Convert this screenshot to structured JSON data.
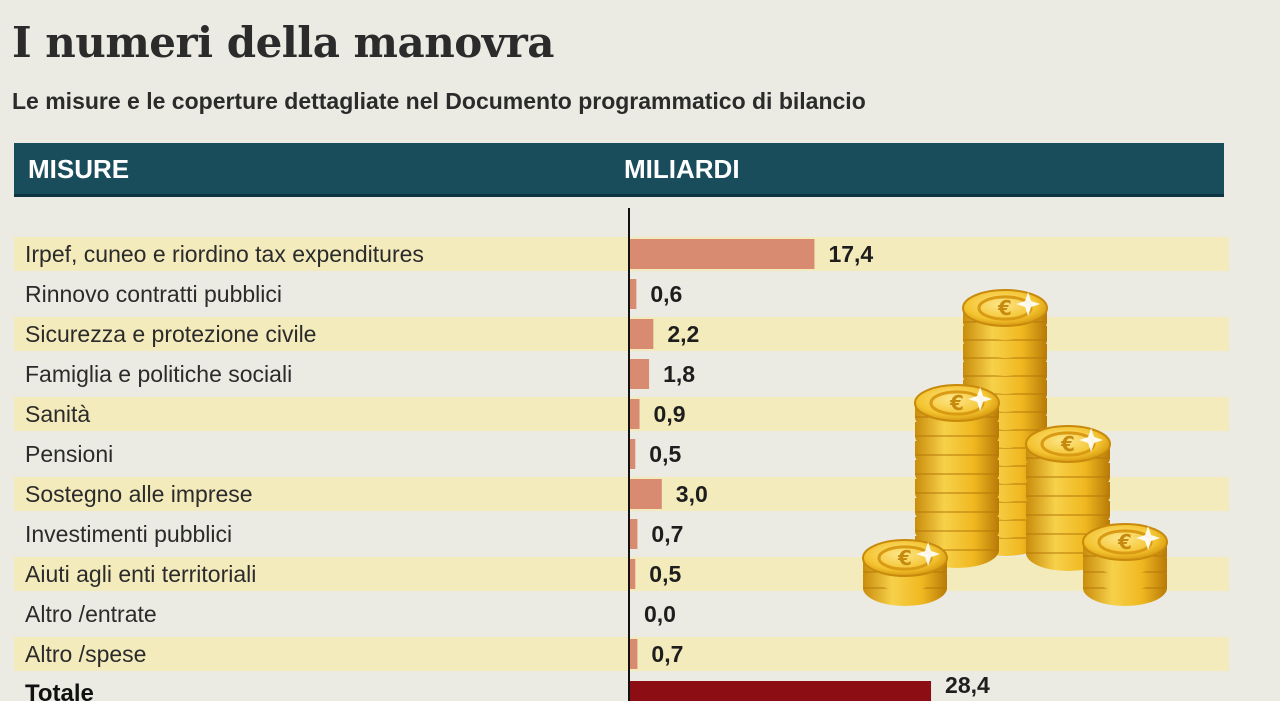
{
  "header": {
    "title": "I numeri della manovra",
    "subtitle": "Le misure e le coperture dettagliate nel Documento programmatico di bilancio",
    "col_measures": "MISURE",
    "col_billions": "MILIARDI"
  },
  "colors": {
    "bar": "#d98b72",
    "total_bar": "#8c0e14",
    "stripe": "#f3ebbb",
    "header_bg": "#1a4d5c",
    "coin_gold": "#f2c42a"
  },
  "illustration": {
    "icon": "gold-coins-stack-icon"
  },
  "chart_data": {
    "type": "bar",
    "orientation": "horizontal",
    "title": "I numeri della manovra",
    "subtitle": "Le misure e le coperture dettagliate nel Documento programmatico di bilancio",
    "categories": [
      "Irpef, cuneo e riordino tax expenditures",
      "Rinnovo contratti pubblici",
      "Sicurezza e protezione civile",
      "Famiglia e politiche sociali",
      "Sanità",
      "Pensioni",
      "Sostegno alle imprese",
      "Investimenti pubblici",
      "Aiuti agli enti territoriali",
      "Altro /entrate",
      "Altro /spese"
    ],
    "values": [
      17.4,
      0.6,
      2.2,
      1.8,
      0.9,
      0.5,
      3.0,
      0.7,
      0.5,
      0.0,
      0.7
    ],
    "value_labels": [
      "17,4",
      "0,6",
      "2,2",
      "1,8",
      "0,9",
      "0,5",
      "3,0",
      "0,7",
      "0,5",
      "0,0",
      "0,7"
    ],
    "total": {
      "label": "Totale",
      "value": 28.4,
      "value_label": "28,4"
    },
    "xlim": [
      0,
      30
    ],
    "legend": "none",
    "grid": false
  }
}
